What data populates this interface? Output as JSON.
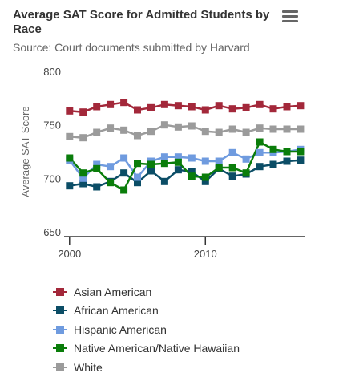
{
  "chart_data": {
    "type": "line",
    "title": "Average SAT Score for Admitted Students by Race",
    "subtitle": "Source: Court documents submitted by Harvard",
    "ylabel": "Average SAT Score",
    "xlabel": "",
    "xlim": [
      1999.6,
      2017.3
    ],
    "ylim": [
      650,
      800
    ],
    "x_ticks": [
      2000,
      2010
    ],
    "y_ticks": [
      650,
      700,
      750,
      800
    ],
    "grid": false,
    "legend_position": "bottom-left",
    "x": [
      2000,
      2001,
      2002,
      2003,
      2004,
      2005,
      2006,
      2007,
      2008,
      2009,
      2010,
      2011,
      2012,
      2013,
      2014,
      2015,
      2016,
      2017
    ],
    "series": [
      {
        "name": "Asian American",
        "color": "#a3283a",
        "values": [
          763,
          762,
          767,
          769,
          771,
          764,
          766,
          769,
          768,
          767,
          764,
          768,
          765,
          766,
          769,
          765,
          767,
          768
        ]
      },
      {
        "name": "African American",
        "color": "#0b4d66",
        "values": [
          693,
          695,
          692,
          697,
          705,
          696,
          707,
          697,
          708,
          706,
          697,
          709,
          702,
          704,
          711,
          713,
          716,
          717
        ]
      },
      {
        "name": "Hispanic American",
        "color": "#6f9bdf",
        "values": [
          717,
          700,
          713,
          711,
          719,
          701,
          716,
          720,
          720,
          719,
          716,
          716,
          724,
          718,
          724,
          724,
          725,
          727
        ]
      },
      {
        "name": "Native American/Native Hawaiian",
        "color": "#0a7d0a",
        "values": [
          719,
          705,
          709,
          696,
          689,
          714,
          713,
          714,
          715,
          702,
          701,
          710,
          710,
          705,
          734,
          727,
          725,
          725
        ]
      },
      {
        "name": "White",
        "color": "#9b9b9b",
        "values": [
          739,
          738,
          743,
          747,
          745,
          740,
          744,
          750,
          748,
          749,
          744,
          743,
          746,
          743,
          747,
          746,
          746,
          746
        ]
      }
    ]
  },
  "icons": {
    "menu": "hamburger-menu-icon"
  }
}
